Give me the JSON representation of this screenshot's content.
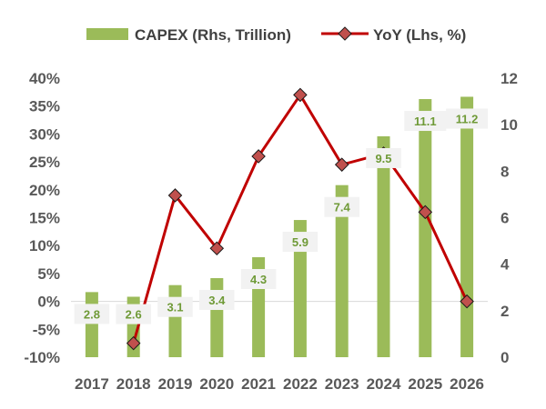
{
  "chart_data": {
    "type": "bar",
    "categories": [
      "2017",
      "2018",
      "2019",
      "2020",
      "2021",
      "2022",
      "2023",
      "2024",
      "2025",
      "2026"
    ],
    "series": [
      {
        "name": "CAPEX (Rhs, Trillion)",
        "type": "bar",
        "axis": "right",
        "values": [
          2.8,
          2.6,
          3.1,
          3.4,
          4.3,
          5.9,
          7.4,
          9.5,
          11.1,
          11.2
        ],
        "color": "#9bbb59"
      },
      {
        "name": "YoY (Lhs, %)",
        "type": "line",
        "axis": "left",
        "values": [
          null,
          -7.5,
          19.0,
          9.5,
          26.0,
          37.0,
          24.5,
          26.5,
          16.0,
          0.0
        ],
        "color": "#c00000",
        "marker_color": "#c0504d"
      }
    ],
    "left_axis": {
      "ylim": [
        -10,
        40
      ],
      "ticks": [
        -10,
        -5,
        0,
        5,
        10,
        15,
        20,
        25,
        30,
        35,
        40
      ],
      "tick_labels": [
        "-10%",
        "-5%",
        "0%",
        "5%",
        "10%",
        "15%",
        "20%",
        "25%",
        "30%",
        "35%",
        "40%"
      ]
    },
    "right_axis": {
      "ylim": [
        0,
        12
      ],
      "ticks": [
        0,
        2,
        4,
        6,
        8,
        10,
        12
      ],
      "tick_labels": [
        "0",
        "2",
        "4",
        "6",
        "8",
        "10",
        "12"
      ]
    },
    "data_labels": [
      "2.8",
      "2.6",
      "3.1",
      "3.4",
      "4.3",
      "5.9",
      "7.4",
      "9.5",
      "11.1",
      "11.2"
    ],
    "legend_position": "top",
    "grid": false,
    "title": "",
    "xlabel": "",
    "ylabel": ""
  }
}
